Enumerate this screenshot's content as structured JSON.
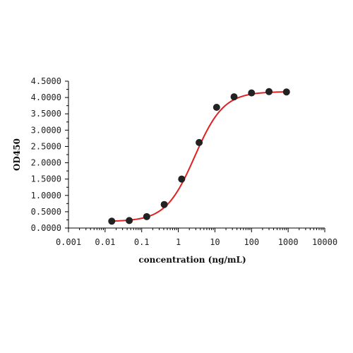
{
  "chart_data": {
    "type": "scatter",
    "title": "",
    "xlabel": "concentration (ng/mL)",
    "ylabel": "OD450",
    "x_scale": "log",
    "xlim": [
      0.001,
      10000
    ],
    "ylim": [
      0,
      4.5
    ],
    "x_ticks": [
      0.001,
      0.01,
      0.1,
      1,
      10,
      100,
      1000,
      10000
    ],
    "x_tick_labels": [
      "0.001",
      "0.01",
      "0.1",
      "1",
      "10",
      "100",
      "1000",
      "10000"
    ],
    "y_ticks": [
      0,
      0.5,
      1,
      1.5,
      2,
      2.5,
      3,
      3.5,
      4,
      4.5
    ],
    "y_tick_labels": [
      "0.0000",
      "0.5000",
      "1.0000",
      "1.5000",
      "2.0000",
      "2.5000",
      "3.0000",
      "3.5000",
      "4.0000",
      "4.5000"
    ],
    "grid": false,
    "legend": "none",
    "series": [
      {
        "x": [
          0.0152,
          0.0457,
          0.137,
          0.412,
          1.235,
          3.704,
          11.11,
          33.33,
          100,
          300,
          900
        ],
        "y": [
          0.21,
          0.23,
          0.35,
          0.72,
          1.5,
          2.62,
          3.7,
          4.02,
          4.14,
          4.18,
          4.17
        ],
        "marker_color": "#222222",
        "fit_color": "#e02020"
      }
    ]
  }
}
